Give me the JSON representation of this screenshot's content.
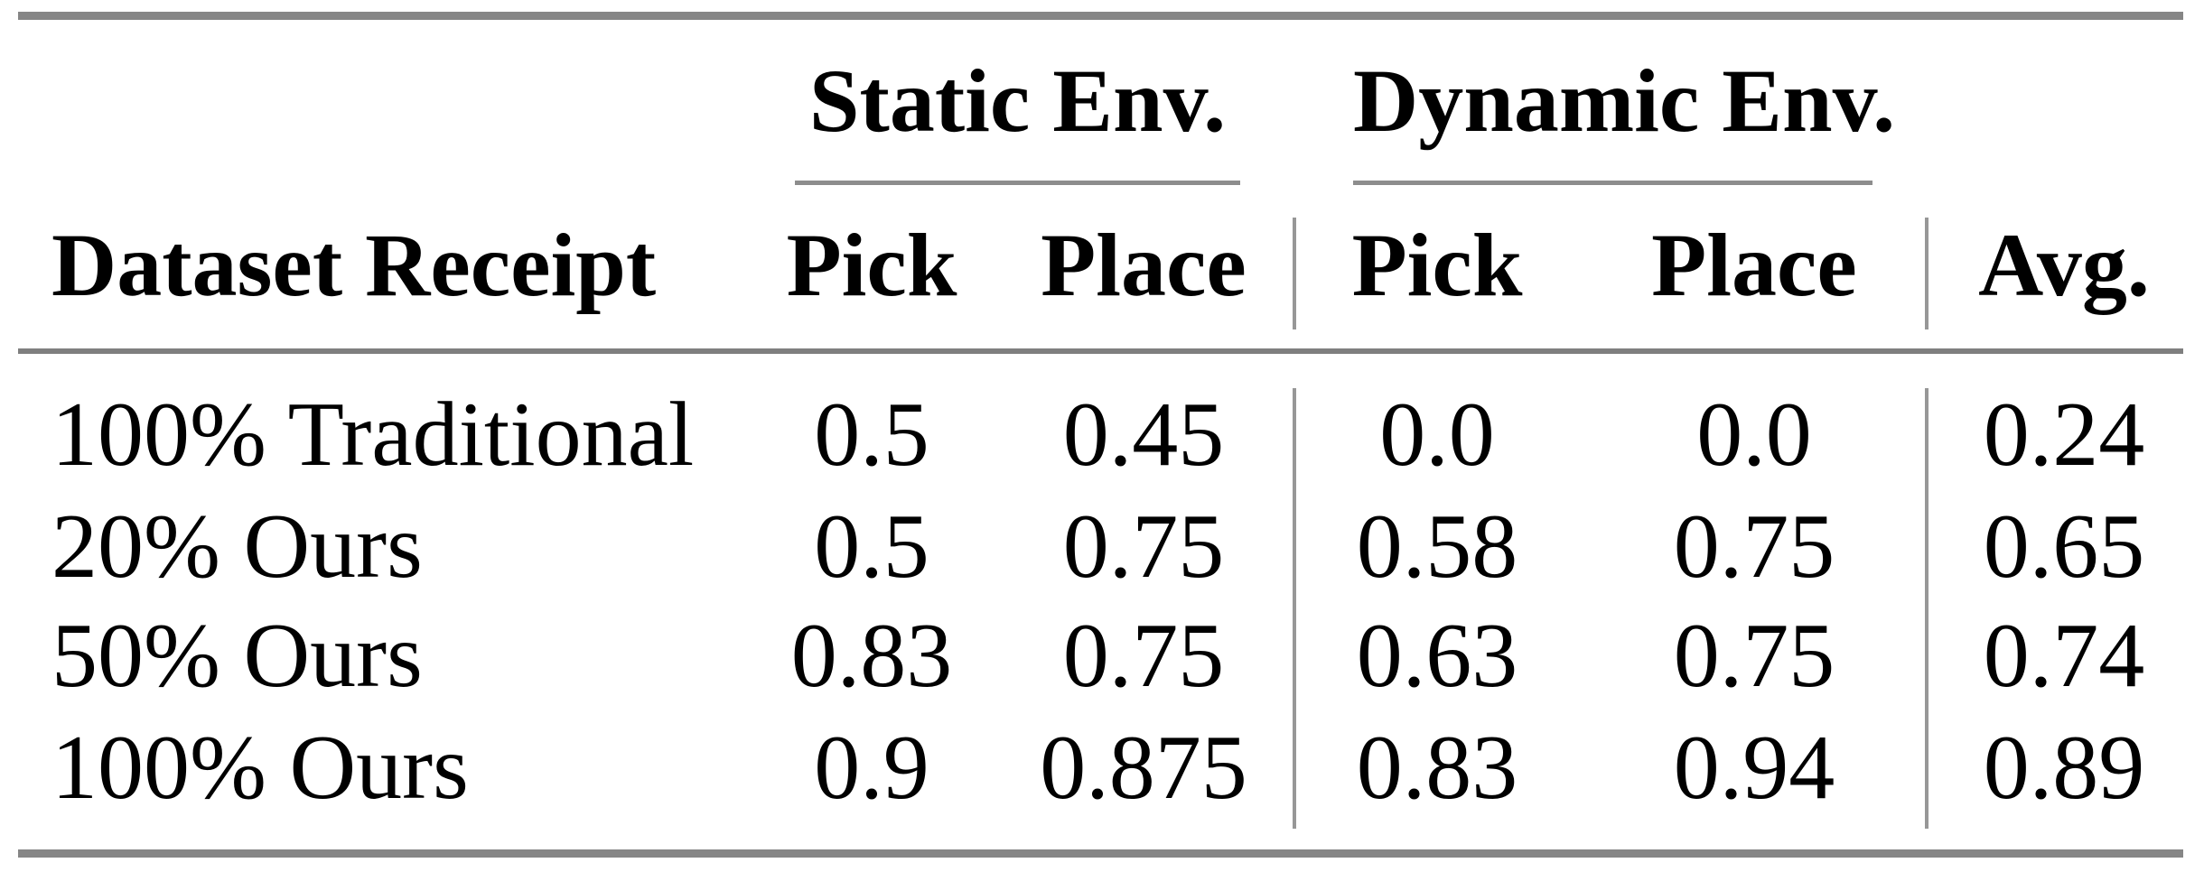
{
  "page": {
    "background": "#ffffff",
    "text_color": "#000000",
    "heavy_rule_color": "#868686",
    "mid_rule_color": "#7f7f7f",
    "cmidrule_color": "#8d8d8d",
    "vline_color": "#979797"
  },
  "table": {
    "groups": [
      {
        "label": "Static Env."
      },
      {
        "label": "Dynamic Env."
      }
    ],
    "header": [
      "Dataset Receipt",
      "Pick",
      "Place",
      "Pick",
      "Place",
      "Avg."
    ],
    "rows": [
      {
        "cells": [
          "100% Traditional",
          "0.5",
          "0.45",
          "0.0",
          "0.0",
          "0.24"
        ]
      },
      {
        "cells": [
          "20% Ours",
          "0.5",
          "0.75",
          "0.58",
          "0.75",
          "0.65"
        ]
      },
      {
        "cells": [
          "50% Ours",
          "0.83",
          "0.75",
          "0.63",
          "0.75",
          "0.74"
        ]
      },
      {
        "cells": [
          "100% Ours",
          "0.9",
          "0.875",
          "0.83",
          "0.94",
          "0.89"
        ]
      }
    ]
  },
  "chart_data": {
    "type": "table",
    "title": "",
    "columns": [
      "Dataset Receipt",
      "Static Env. Pick",
      "Static Env. Place",
      "Dynamic Env. Pick",
      "Dynamic Env. Place",
      "Avg."
    ],
    "rows": [
      [
        "100% Traditional",
        0.5,
        0.45,
        0.0,
        0.0,
        0.24
      ],
      [
        "20% Ours",
        0.5,
        0.75,
        0.58,
        0.75,
        0.65
      ],
      [
        "50% Ours",
        0.83,
        0.75,
        0.63,
        0.75,
        0.74
      ],
      [
        "100% Ours",
        0.9,
        0.875,
        0.83,
        0.94,
        0.89
      ]
    ]
  }
}
